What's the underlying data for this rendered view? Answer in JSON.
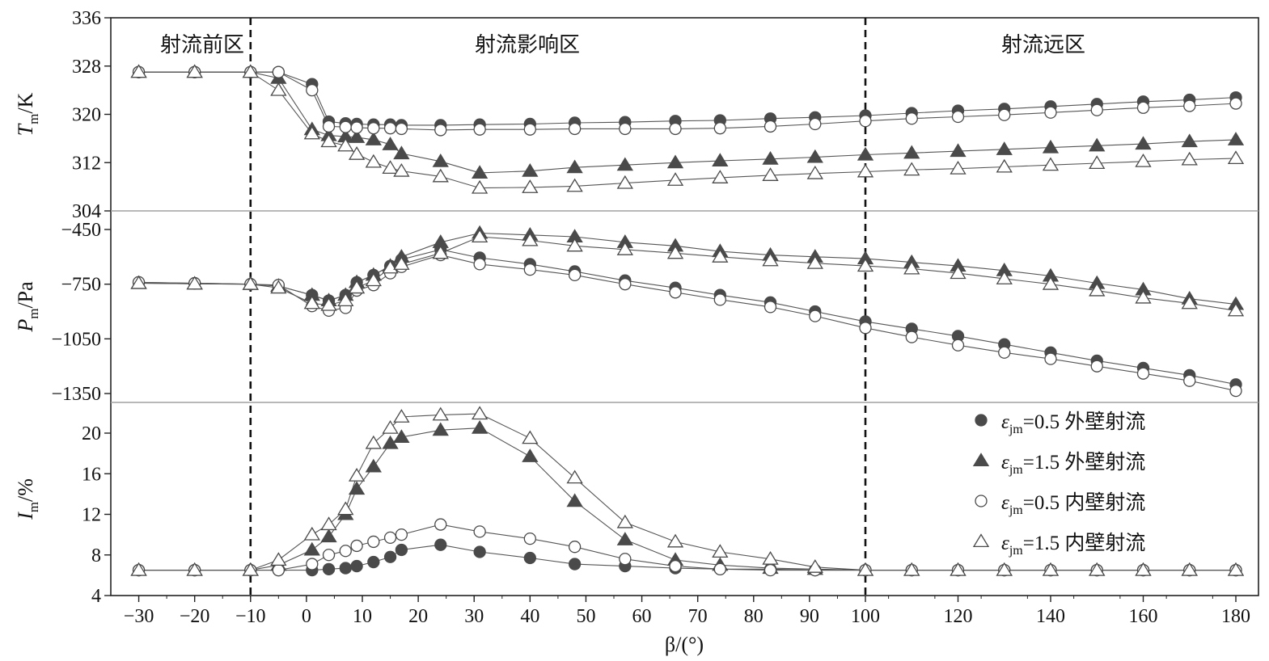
{
  "chart_data": {
    "type": "line",
    "xlabel": "β/(°)",
    "x_ticks": [
      "−30",
      "−20",
      "−10",
      "0",
      "10",
      "20",
      "30",
      "40",
      "50",
      "60",
      "70",
      "80",
      "90",
      "100",
      "120",
      "140",
      "160",
      "180"
    ],
    "regions": [
      {
        "label": "射流前区"
      },
      {
        "label": "射流影响区"
      },
      {
        "label": "射流远区"
      }
    ],
    "boundaries": [
      -10,
      100
    ],
    "panels": [
      {
        "id": "T",
        "ylabel_main": "T",
        "ylabel_sub": "m",
        "ylabel_unit": "/K",
        "ylim": [
          304,
          336
        ],
        "yticks": [
          304,
          312,
          320,
          328,
          336
        ],
        "ytick_labels": [
          "304",
          "312",
          "320",
          "328",
          "336"
        ]
      },
      {
        "id": "P",
        "ylabel_main": "P",
        "ylabel_sub": "m",
        "ylabel_unit": "/Pa",
        "ylim": [
          -1400,
          -400
        ],
        "yticks": [
          -450,
          -750,
          -1050,
          -1350
        ],
        "ytick_labels": [
          "−450",
          "−750",
          "−1050",
          "−1350"
        ]
      },
      {
        "id": "I",
        "ylabel_main": "I",
        "ylabel_sub": "m",
        "ylabel_unit": "/%",
        "ylim": [
          4,
          22.5
        ],
        "yticks": [
          4,
          8,
          12,
          16,
          20
        ],
        "ytick_labels": [
          "4",
          "8",
          "12",
          "16",
          "20"
        ]
      }
    ],
    "x": [
      -30,
      -20,
      -10,
      -5,
      1,
      4,
      7,
      9,
      12,
      15,
      17,
      24,
      31,
      40,
      48,
      57,
      66,
      74,
      83,
      91,
      100,
      110,
      120,
      130,
      140,
      150,
      160,
      170,
      180
    ],
    "series": [
      {
        "name": "εjm=0.5 外壁射流",
        "marker": "filled-circle",
        "T": [
          327,
          327,
          327,
          327,
          325,
          318.8,
          318.5,
          318.4,
          318.3,
          318.3,
          318.2,
          318.2,
          318.3,
          318.4,
          318.6,
          318.7,
          318.9,
          319.0,
          319.3,
          319.5,
          319.8,
          320.2,
          320.6,
          320.9,
          321.3,
          321.7,
          322.1,
          322.4,
          322.8
        ],
        "P": [
          -740,
          -745,
          -750,
          -760,
          -810,
          -840,
          -810,
          -740,
          -700,
          -650,
          -615,
          -560,
          -605,
          -640,
          -680,
          -730,
          -770,
          -810,
          -850,
          -900,
          -955,
          -995,
          -1035,
          -1080,
          -1125,
          -1170,
          -1210,
          -1250,
          -1300
        ],
        "I": [
          6.5,
          6.5,
          6.5,
          6.5,
          6.5,
          6.6,
          6.7,
          6.9,
          7.3,
          7.8,
          8.5,
          9.0,
          8.3,
          7.7,
          7.1,
          6.9,
          6.7,
          6.6,
          6.6,
          6.5,
          6.5,
          6.5,
          6.5,
          6.5,
          6.5,
          6.5,
          6.5,
          6.5,
          6.5
        ]
      },
      {
        "name": "εjm=1.5 外壁射流",
        "marker": "filled-triangle",
        "T": [
          327,
          327,
          327,
          326,
          317.5,
          316.5,
          316.3,
          316.2,
          315.8,
          315,
          313.5,
          312.2,
          310.3,
          310.6,
          311.2,
          311.6,
          312,
          312.3,
          312.6,
          312.9,
          313.3,
          313.6,
          313.9,
          314.2,
          314.5,
          314.8,
          315.1,
          315.5,
          315.8
        ],
        "P": [
          -745,
          -748,
          -750,
          -760,
          -810,
          -840,
          -810,
          -740,
          -700,
          -650,
          -600,
          -520,
          -470,
          -480,
          -490,
          -520,
          -540,
          -570,
          -590,
          -600,
          -610,
          -630,
          -650,
          -675,
          -705,
          -745,
          -780,
          -830,
          -860
        ],
        "I": [
          6.5,
          6.5,
          6.5,
          7.0,
          8.5,
          9.8,
          12.0,
          14.5,
          16.7,
          19.0,
          19.6,
          20.3,
          20.5,
          17.7,
          13.3,
          9.5,
          7.5,
          7.0,
          6.7,
          6.6,
          6.5,
          6.5,
          6.5,
          6.5,
          6.5,
          6.5,
          6.5,
          6.5,
          6.5
        ]
      },
      {
        "name": "εjm=0.5 内壁射流",
        "marker": "open-circle",
        "T": [
          327,
          327,
          327,
          327,
          324,
          318,
          317.9,
          317.8,
          317.7,
          317.7,
          317.6,
          317.4,
          317.5,
          317.5,
          317.6,
          317.6,
          317.6,
          317.7,
          318.0,
          318.4,
          318.9,
          319.3,
          319.6,
          319.9,
          320.3,
          320.7,
          321.1,
          321.4,
          321.8
        ],
        "P": [
          -740,
          -745,
          -750,
          -755,
          -870,
          -895,
          -880,
          -785,
          -755,
          -690,
          -655,
          -590,
          -640,
          -670,
          -700,
          -750,
          -795,
          -835,
          -875,
          -925,
          -990,
          -1040,
          -1085,
          -1125,
          -1160,
          -1200,
          -1240,
          -1280,
          -1335
        ],
        "I": [
          6.5,
          6.5,
          6.5,
          6.5,
          7.1,
          8.0,
          8.4,
          8.9,
          9.3,
          9.7,
          10.0,
          11.0,
          10.3,
          9.6,
          8.8,
          7.6,
          6.9,
          6.6,
          6.5,
          6.5,
          6.5,
          6.5,
          6.5,
          6.5,
          6.5,
          6.5,
          6.5,
          6.5,
          6.5
        ]
      },
      {
        "name": "εjm=1.5 内壁射流",
        "marker": "open-triangle",
        "T": [
          327,
          327,
          327,
          324,
          316.8,
          315.5,
          314.8,
          313.4,
          312.1,
          311.1,
          310.6,
          309.7,
          307.8,
          307.9,
          308.1,
          308.6,
          309.1,
          309.5,
          309.9,
          310.2,
          310.5,
          310.8,
          311.0,
          311.3,
          311.6,
          311.9,
          312.2,
          312.5,
          312.7
        ],
        "P": [
          -745,
          -748,
          -750,
          -770,
          -855,
          -865,
          -840,
          -770,
          -730,
          -660,
          -640,
          -580,
          -490,
          -510,
          -540,
          -560,
          -580,
          -600,
          -620,
          -635,
          -650,
          -665,
          -690,
          -720,
          -750,
          -785,
          -825,
          -855,
          -895
        ],
        "I": [
          6.5,
          6.5,
          6.5,
          7.5,
          10.0,
          11.0,
          12.5,
          15.8,
          19.0,
          20.5,
          21.6,
          21.8,
          21.9,
          19.5,
          15.6,
          11.2,
          9.3,
          8.3,
          7.6,
          6.8,
          6.5,
          6.5,
          6.5,
          6.5,
          6.5,
          6.5,
          6.5,
          6.5,
          6.5
        ]
      }
    ],
    "legend": [
      {
        "eps": "ε",
        "sub": "jm",
        "text": "=0.5 外壁射流",
        "marker": "filled-circle"
      },
      {
        "eps": "ε",
        "sub": "jm",
        "text": "=1.5 外壁射流",
        "marker": "filled-triangle"
      },
      {
        "eps": "ε",
        "sub": "jm",
        "text": "=0.5 内壁射流",
        "marker": "open-circle"
      },
      {
        "eps": "ε",
        "sub": "jm",
        "text": "=1.5 内壁射流",
        "marker": "open-triangle"
      }
    ],
    "colors": {
      "marker": "#4a4a4a",
      "line": "#555555",
      "axis": "#222222",
      "divider": "#a0a0a0",
      "boundary": "#111111"
    }
  }
}
